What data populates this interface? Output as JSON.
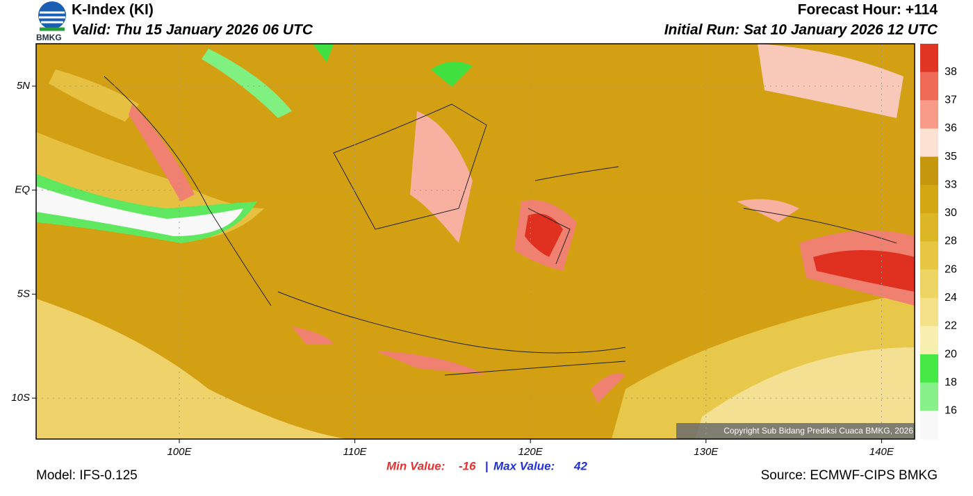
{
  "header": {
    "logo_text": "BMKG",
    "title": "K-Index (KI)",
    "valid": "Valid: Thu 15 January 2026 06 UTC",
    "forecast_hour": "Forecast Hour: +114",
    "initial_run": "Initial Run: Sat 10 January 2026 12 UTC"
  },
  "map": {
    "lat_labels": [
      "5N",
      "EQ",
      "5S",
      "10S"
    ],
    "lon_labels": [
      "100E",
      "110E",
      "120E",
      "130E",
      "140E"
    ],
    "copyright": "Copyright Sub Bidang Prediksi Cuaca BMKG, 2026"
  },
  "colorbar": {
    "labels": [
      38,
      37,
      36,
      35,
      33,
      30,
      28,
      26,
      24,
      22,
      20,
      18,
      16
    ]
  },
  "footer": {
    "model": "Model: IFS-0.125",
    "min_label": "Min Value:",
    "min_value": -16,
    "separator": "|",
    "max_label": "Max Value:",
    "max_value": 42,
    "source": "Source: ECMWF-CIPS BMKG"
  }
}
